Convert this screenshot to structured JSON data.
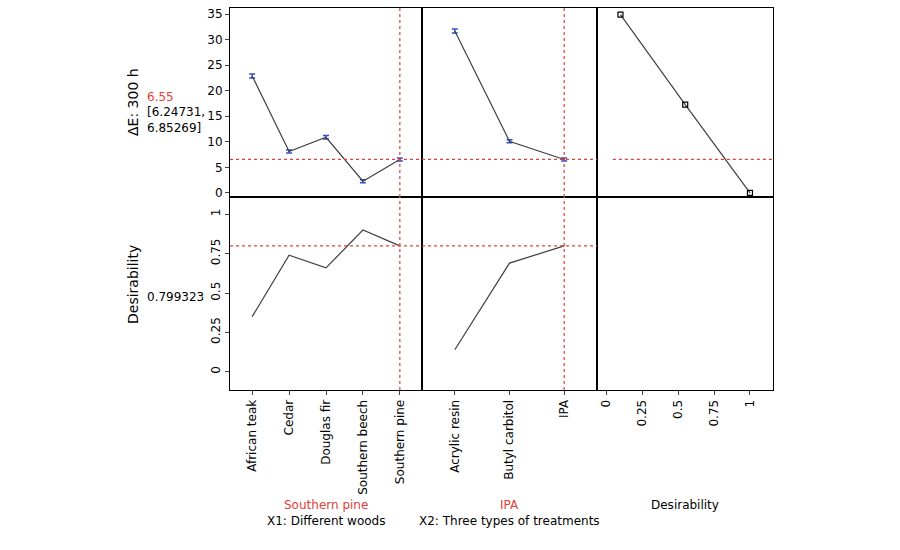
{
  "chart_data": {
    "type": "profiler",
    "color": "#404040",
    "responses": [
      {
        "label": "ΔE: 300 h",
        "current": 6.55,
        "interval": [
          6.24731,
          6.85269
        ],
        "interval_label": "[6.24731, 6.85269]",
        "ylim": [
          -0.8,
          36.2
        ],
        "yticks": [
          0,
          5,
          10,
          15,
          20,
          25,
          30,
          35
        ]
      },
      {
        "label": "Desirability",
        "current": 0.799323,
        "ylim": [
          -0.116,
          1.11
        ],
        "yticks": [
          0,
          0.25,
          0.5,
          0.75,
          1
        ]
      }
    ],
    "factors": [
      {
        "label": "X1: Different woods",
        "current": "Southern pine",
        "categories": [
          "African teak",
          "Cedar",
          "Douglas fir",
          "Southern beech",
          "Southern pine"
        ],
        "values": [
          [
            22.9,
            8.1,
            10.9,
            2.3,
            6.55
          ],
          [
            0.35,
            0.74,
            0.66,
            0.9,
            0.799323
          ]
        ],
        "intervals": [
          [
            22.5,
            23.3
          ],
          [
            7.8,
            8.4
          ],
          [
            10.55,
            11.25
          ],
          [
            2.0,
            2.6
          ],
          [
            6.24731,
            6.85269
          ]
        ]
      },
      {
        "label": "X2: Three types of treatments",
        "current": "IPA",
        "categories": [
          "Acrylic resin",
          "Butyl carbitol",
          "IPA"
        ],
        "values": [
          [
            31.7,
            10.1,
            6.55
          ],
          [
            0.14,
            0.69,
            0.799323
          ]
        ],
        "intervals": [
          [
            31.3,
            32.1
          ],
          [
            9.8,
            10.4
          ],
          [
            6.24731,
            6.85269
          ]
        ]
      }
    ],
    "desirability_panel": {
      "label": "Desirability",
      "marker": "square-open",
      "x": [
        0.1,
        0.55,
        1
      ],
      "values": [
        34.9,
        17.3,
        0
      ],
      "xlim": [
        -0.063,
        1.16
      ],
      "xticks": [
        0,
        0.25,
        0.5,
        0.75,
        1
      ]
    }
  }
}
